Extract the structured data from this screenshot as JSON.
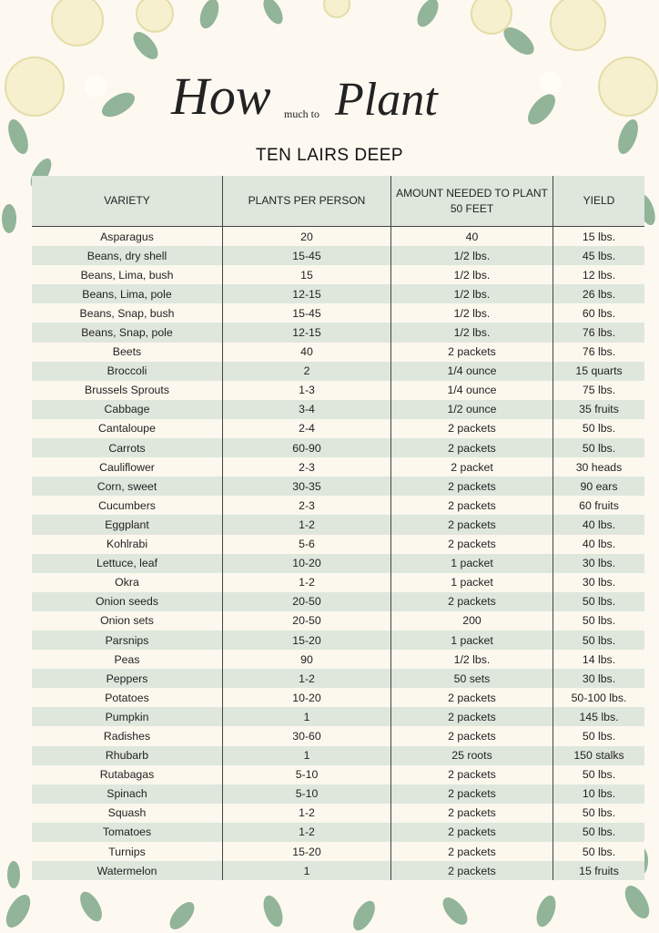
{
  "header": {
    "title_part1": "How",
    "title_part2": "much to",
    "title_part3": "Plant",
    "subtitle": "TEN LAIRS DEEP"
  },
  "table": {
    "columns": [
      "VARIETY",
      "PLANTS PER PERSON",
      "AMOUNT NEEDED TO PLANT 50 FEET",
      "YIELD"
    ],
    "rows": [
      [
        "Asparagus",
        "20",
        "40",
        "15 lbs."
      ],
      [
        "Beans, dry shell",
        "15-45",
        "1/2 lbs.",
        "45 lbs."
      ],
      [
        "Beans, Lima, bush",
        "15",
        "1/2 lbs.",
        "12 lbs."
      ],
      [
        "Beans, Lima, pole",
        "12-15",
        "1/2 lbs.",
        "26 lbs."
      ],
      [
        "Beans, Snap, bush",
        "15-45",
        "1/2 lbs.",
        "60 lbs."
      ],
      [
        "Beans, Snap, pole",
        "12-15",
        "1/2 lbs.",
        "76 lbs."
      ],
      [
        "Beets",
        "40",
        "2 packets",
        "76 lbs."
      ],
      [
        "Broccoli",
        "2",
        "1/4 ounce",
        "15 quarts"
      ],
      [
        "Brussels Sprouts",
        "1-3",
        "1/4 ounce",
        "75 lbs."
      ],
      [
        "Cabbage",
        "3-4",
        "1/2 ounce",
        "35 fruits"
      ],
      [
        "Cantaloupe",
        "2-4",
        "2 packets",
        "50 lbs."
      ],
      [
        "Carrots",
        "60-90",
        "2 packets",
        "50 lbs."
      ],
      [
        "Cauliflower",
        "2-3",
        "2 packet",
        "30 heads"
      ],
      [
        "Corn, sweet",
        "30-35",
        "2 packets",
        "90 ears"
      ],
      [
        "Cucumbers",
        "2-3",
        "2 packets",
        "60 fruits"
      ],
      [
        "Eggplant",
        "1-2",
        "2 packets",
        "40 lbs."
      ],
      [
        "Kohlrabi",
        "5-6",
        "2 packets",
        "40 lbs."
      ],
      [
        "Lettuce, leaf",
        "10-20",
        "1 packet",
        "30 lbs."
      ],
      [
        "Okra",
        "1-2",
        "1 packet",
        "30 lbs."
      ],
      [
        "Onion seeds",
        "20-50",
        "2 packets",
        "50 lbs."
      ],
      [
        "Onion sets",
        "20-50",
        "200",
        "50 lbs."
      ],
      [
        "Parsnips",
        "15-20",
        "1 packet",
        "50 lbs."
      ],
      [
        "Peas",
        "90",
        "1/2 lbs.",
        "14 lbs."
      ],
      [
        "Peppers",
        "1-2",
        "50 sets",
        "30 lbs."
      ],
      [
        "Potatoes",
        "10-20",
        "2 packets",
        "50-100 lbs."
      ],
      [
        "Pumpkin",
        "1",
        "2 packets",
        "145 lbs."
      ],
      [
        "Radishes",
        "30-60",
        "2 packets",
        "50 lbs."
      ],
      [
        "Rhubarb",
        "1",
        "25 roots",
        "150 stalks"
      ],
      [
        "Rutabagas",
        "5-10",
        "2 packets",
        "50 lbs."
      ],
      [
        "Spinach",
        "5-10",
        "2 packets",
        "10 lbs."
      ],
      [
        "Squash",
        "1-2",
        "2 packets",
        "50 lbs."
      ],
      [
        "Tomatoes",
        "1-2",
        "2 packets",
        "50 lbs."
      ],
      [
        "Turnips",
        "15-20",
        "2 packets",
        "50 lbs."
      ],
      [
        "Watermelon",
        "1",
        "2 packets",
        "15 fruits"
      ]
    ]
  }
}
